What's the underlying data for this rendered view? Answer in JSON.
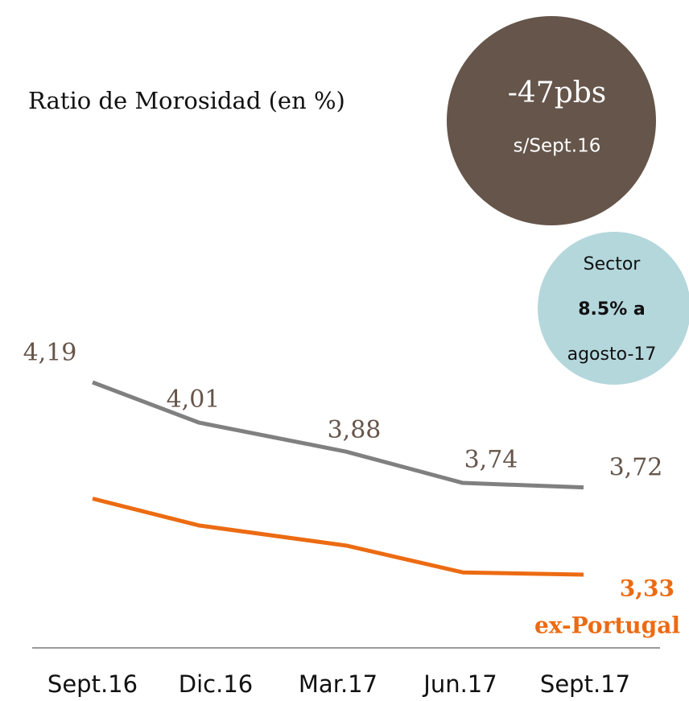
{
  "chart_data": {
    "type": "line",
    "title": "Ratio de Morosidad (en %)",
    "categories": [
      "Sept.16",
      "Dic.16",
      "Mar.17",
      "Jun.17",
      "Sept.17"
    ],
    "series": [
      {
        "name": null,
        "color": "#808080",
        "values": [
          4.19,
          4.01,
          3.88,
          3.74,
          3.72
        ],
        "value_labels": [
          "4,19",
          "4,01",
          "3,88",
          "3,74",
          "3,72"
        ]
      },
      {
        "name": "ex-Portugal",
        "color": "#ec6b12",
        "values": [
          3.67,
          3.55,
          3.46,
          3.34,
          3.33
        ],
        "value_labels": [
          null,
          null,
          null,
          null,
          "3,33"
        ]
      }
    ],
    "annotations": {
      "change": "-47pbs",
      "change_ref": "s/Sept.16",
      "sector_1": "Sector",
      "sector_2": "8.5% a",
      "sector_3": "agosto-17"
    }
  }
}
